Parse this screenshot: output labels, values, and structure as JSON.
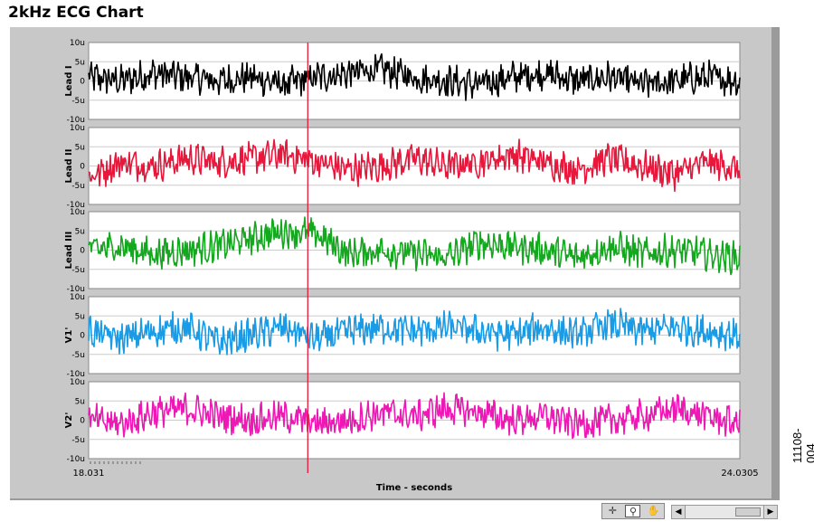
{
  "title": "2kHz ECG Chart",
  "figure_number": "11108-004",
  "icons": [
    "crosshair-icon",
    "zoom-icon",
    "pan-hand-icon",
    "scroll-left-icon",
    "scroll-right-icon"
  ],
  "chart_data": {
    "type": "line",
    "xlabel": "Time - seconds",
    "x_range": [
      18.031,
      24.0305
    ],
    "x_tick_labels": [
      "18.031",
      "24.0305"
    ],
    "cursor_x": 20.05,
    "ylim": [
      -10,
      10
    ],
    "y_unit": "u",
    "y_tick_labels": [
      "10u",
      "5u",
      "0",
      "-5u",
      "-10u"
    ],
    "grid": true,
    "series": [
      {
        "name": "Lead I",
        "color": "#000000",
        "x": [
          18.03,
          18.33,
          18.63,
          18.93,
          19.23,
          19.53,
          19.83,
          20.13,
          20.43,
          20.73,
          21.03,
          21.33,
          21.63,
          21.93,
          22.23,
          22.53,
          22.83,
          23.13,
          23.43,
          23.73,
          24.03
        ],
        "values": [
          1,
          0,
          2,
          1,
          0,
          1,
          -1,
          1,
          2,
          3,
          1,
          0,
          -1,
          1,
          2,
          0,
          1,
          -1,
          0,
          1,
          0
        ]
      },
      {
        "name": "Lead II",
        "color": "#e8173c",
        "x": [
          18.03,
          18.33,
          18.63,
          18.93,
          19.23,
          19.53,
          19.83,
          20.13,
          20.43,
          20.73,
          21.03,
          21.33,
          21.63,
          21.93,
          22.23,
          22.53,
          22.83,
          23.13,
          23.43,
          23.73,
          24.03
        ],
        "values": [
          -3,
          1,
          0,
          2,
          1,
          2,
          3,
          1,
          -1,
          0,
          2,
          0,
          1,
          3,
          1,
          -1,
          2,
          0,
          -2,
          1,
          -1
        ]
      },
      {
        "name": "Lead III",
        "color": "#14a81e",
        "x": [
          18.03,
          18.33,
          18.63,
          18.93,
          19.23,
          19.53,
          19.83,
          20.13,
          20.43,
          20.73,
          21.03,
          21.33,
          21.63,
          21.93,
          22.23,
          22.53,
          22.83,
          23.13,
          23.43,
          23.73,
          24.03
        ],
        "values": [
          0,
          1,
          -1,
          0,
          1,
          3,
          5,
          4,
          -1,
          0,
          -1,
          -2,
          2,
          1,
          0,
          -2,
          1,
          -1,
          0,
          -1,
          -2
        ]
      },
      {
        "name": "V1'",
        "color": "#1a9be6",
        "x": [
          18.03,
          18.33,
          18.63,
          18.93,
          19.23,
          19.53,
          19.83,
          20.13,
          20.43,
          20.73,
          21.03,
          21.33,
          21.63,
          21.93,
          22.23,
          22.53,
          22.83,
          23.13,
          23.43,
          23.73,
          24.03
        ],
        "values": [
          1,
          -1,
          1,
          2,
          -2,
          0,
          2,
          -1,
          1,
          2,
          1,
          2,
          1,
          0,
          2,
          0,
          3,
          1,
          2,
          1,
          0
        ]
      },
      {
        "name": "V2'",
        "color": "#ee18b5",
        "x": [
          18.03,
          18.33,
          18.63,
          18.93,
          19.23,
          19.53,
          19.83,
          20.13,
          20.43,
          20.73,
          21.03,
          21.33,
          21.63,
          21.93,
          22.23,
          22.53,
          22.83,
          23.13,
          23.43,
          23.73,
          24.03
        ],
        "values": [
          0,
          -1,
          2,
          3,
          1,
          0,
          1,
          -1,
          0,
          2,
          1,
          3,
          2,
          0,
          1,
          -1,
          0,
          1,
          3,
          1,
          -1
        ]
      }
    ]
  }
}
